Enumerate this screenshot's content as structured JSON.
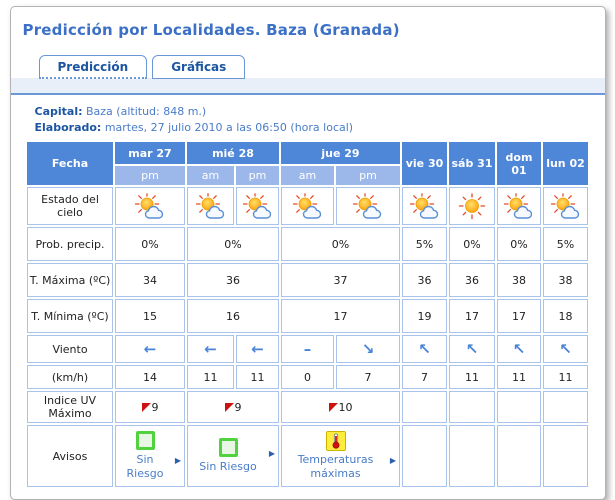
{
  "title": "Predicción por Localidades. Baza (Granada)",
  "tabs": [
    {
      "label": "Predicción",
      "active": true
    },
    {
      "label": "Gráficas",
      "active": false
    }
  ],
  "meta": {
    "capital_label": "Capital:",
    "capital_value": "Baza (altitud: 848 m.)",
    "elaborado_label": "Elaborado:",
    "elaborado_value": "martes, 27 julio 2010 a las 06:50 (hora local)"
  },
  "table": {
    "corner_label": "Fecha",
    "days": [
      {
        "label": "mar 27",
        "periods": [
          "pm"
        ]
      },
      {
        "label": "mié 28",
        "periods": [
          "am",
          "pm"
        ]
      },
      {
        "label": "jue 29",
        "periods": [
          "am",
          "pm"
        ]
      },
      {
        "label": "vie 30",
        "periods": []
      },
      {
        "label": "sáb 31",
        "periods": []
      },
      {
        "label": "dom 01",
        "periods": []
      },
      {
        "label": "lun 02",
        "periods": []
      }
    ],
    "rows": {
      "sky": {
        "label": "Estado del cielo",
        "icons": [
          "sun-cloud",
          "sun-cloud",
          "sun-cloud",
          "sun-cloud",
          "sun-cloud",
          "sun-cloud",
          "sun",
          "sun-cloud",
          "sun-cloud"
        ]
      },
      "precip": {
        "label": "Prob. precip.",
        "values": [
          "0%",
          "0%",
          "0%",
          "5%",
          "0%",
          "0%",
          "5%"
        ]
      },
      "tmax": {
        "label": "T. Máxima (ºC)",
        "values": [
          "34",
          "36",
          "37",
          "36",
          "36",
          "38",
          "38"
        ]
      },
      "tmin": {
        "label": "T. Mínima (ºC)",
        "values": [
          "15",
          "16",
          "17",
          "19",
          "17",
          "17",
          "18"
        ]
      },
      "wind": {
        "label": "Viento",
        "directions": [
          "←",
          "←",
          "←",
          "–",
          "↘",
          "↖",
          "↖",
          "↖",
          "↖"
        ]
      },
      "windspeed": {
        "label": "(km/h)",
        "values": [
          "14",
          "11",
          "11",
          "0",
          "7",
          "7",
          "11",
          "11",
          "11"
        ]
      },
      "uv": {
        "label": "Indice UV Máximo",
        "icons": [
          "uv-triangle",
          "uv-triangle",
          "uv-triangle"
        ],
        "values": [
          "9",
          "9",
          "10"
        ]
      },
      "avisos": {
        "label": "Avisos",
        "items": [
          {
            "icon": "no-risk",
            "text": "Sin Riesgo",
            "chevron_icon": "chevron-right"
          },
          {
            "icon": "no-risk",
            "text": "Sin Riesgo",
            "chevron_icon": "chevron-right"
          },
          {
            "icon": "max-temp",
            "text": "Temperaturas máximas",
            "chevron_icon": "chevron-right"
          }
        ]
      }
    }
  },
  "colors": {
    "header_blue": "#4e86d8",
    "subheader_blue": "#9cb8ea",
    "cell_border": "#a9c4ec",
    "tmax_red": "#cc2200",
    "tmin_blue": "#336699",
    "link_blue": "#4a7cc8",
    "tab_blue": "#1c55a2",
    "arrow_blue": "#4a84d8",
    "no_risk_green": "#52d23f",
    "warning_yellow": "#ffec3d"
  }
}
